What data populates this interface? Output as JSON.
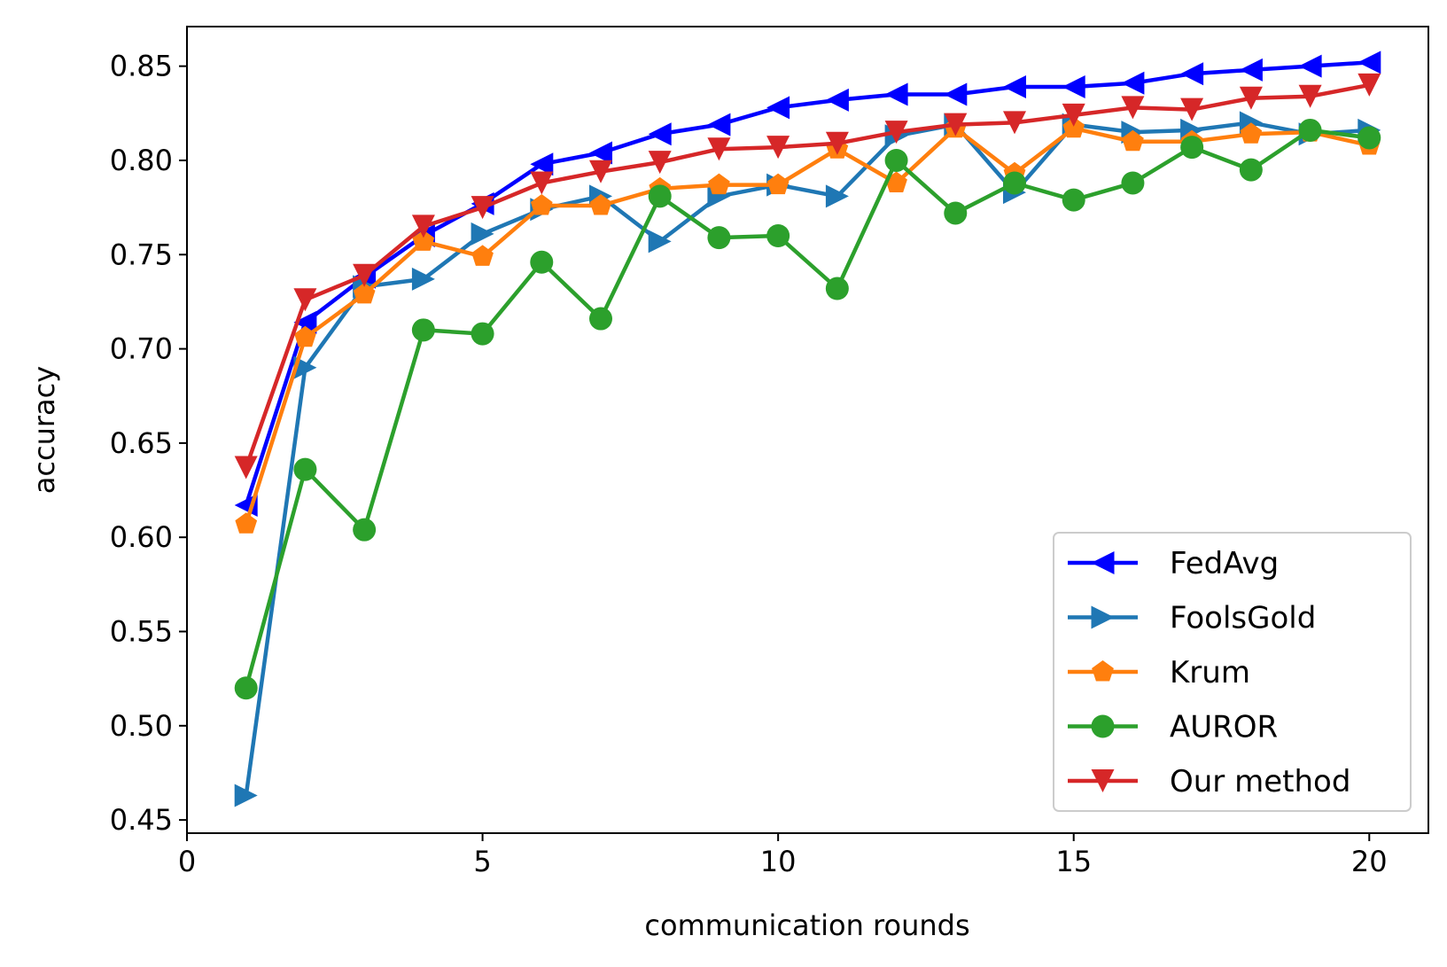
{
  "chart_data": {
    "type": "line",
    "title": "",
    "xlabel": "communication rounds",
    "ylabel": "accuracy",
    "xlim": [
      0,
      21
    ],
    "ylim": [
      0.443,
      0.871
    ],
    "xticks": [
      0,
      5,
      10,
      15,
      20
    ],
    "xtick_labels": [
      "0",
      "5",
      "10",
      "15",
      "20"
    ],
    "yticks": [
      0.45,
      0.5,
      0.55,
      0.6,
      0.65,
      0.7,
      0.75,
      0.8,
      0.85
    ],
    "ytick_labels": [
      "0.45",
      "0.50",
      "0.55",
      "0.60",
      "0.65",
      "0.70",
      "0.75",
      "0.80",
      "0.85"
    ],
    "grid": false,
    "legend_position": "lower-right",
    "x": [
      1,
      2,
      3,
      4,
      5,
      6,
      7,
      8,
      9,
      10,
      11,
      12,
      13,
      14,
      15,
      16,
      17,
      18,
      19,
      20
    ],
    "series": [
      {
        "name": "FedAvg",
        "color": "#0000ff",
        "marker": "triangle-left",
        "values": [
          0.617,
          0.714,
          0.738,
          0.76,
          0.777,
          0.798,
          0.804,
          0.814,
          0.819,
          0.828,
          0.832,
          0.835,
          0.835,
          0.839,
          0.839,
          0.841,
          0.846,
          0.848,
          0.85,
          0.852
        ]
      },
      {
        "name": "FoolsGold",
        "color": "#1f77b4",
        "marker": "triangle-right",
        "values": [
          0.463,
          0.69,
          0.733,
          0.737,
          0.761,
          0.774,
          0.781,
          0.757,
          0.781,
          0.787,
          0.781,
          0.813,
          0.819,
          0.783,
          0.819,
          0.815,
          0.816,
          0.82,
          0.814,
          0.816
        ]
      },
      {
        "name": "Krum",
        "color": "#ff7f0e",
        "marker": "pentagon",
        "values": [
          0.607,
          0.706,
          0.729,
          0.757,
          0.749,
          0.776,
          0.776,
          0.785,
          0.787,
          0.787,
          0.806,
          0.788,
          0.817,
          0.793,
          0.817,
          0.81,
          0.81,
          0.814,
          0.815,
          0.808
        ]
      },
      {
        "name": "AUROR",
        "color": "#2ca02c",
        "marker": "circle",
        "values": [
          0.52,
          0.636,
          0.604,
          0.71,
          0.708,
          0.746,
          0.716,
          0.781,
          0.759,
          0.76,
          0.732,
          0.8,
          0.772,
          0.788,
          0.779,
          0.788,
          0.807,
          0.795,
          0.816,
          0.812
        ]
      },
      {
        "name": "Our method",
        "color": "#d62728",
        "marker": "triangle-down",
        "values": [
          0.637,
          0.726,
          0.739,
          0.765,
          0.775,
          0.788,
          0.794,
          0.799,
          0.806,
          0.807,
          0.809,
          0.815,
          0.819,
          0.82,
          0.824,
          0.828,
          0.827,
          0.833,
          0.834,
          0.84
        ]
      }
    ]
  }
}
